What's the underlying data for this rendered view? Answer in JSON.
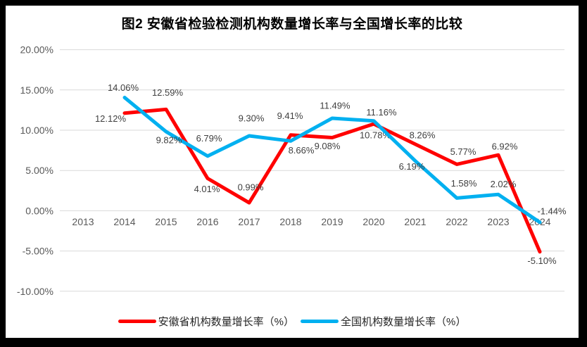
{
  "chart_data": {
    "type": "line",
    "title": "图2 安徽省检验检测机构数量增长率与全国增长率的比较",
    "x_categories": [
      "2013",
      "2014",
      "2015",
      "2016",
      "2017",
      "2018",
      "2019",
      "2020",
      "2021",
      "2022",
      "2023",
      "2024"
    ],
    "y_axis": {
      "min": -10,
      "max": 20,
      "step": 5,
      "ticks": [
        {
          "value": 20,
          "label": "20.00%"
        },
        {
          "value": 15,
          "label": "15.00%"
        },
        {
          "value": 10,
          "label": "10.00%"
        },
        {
          "value": 5,
          "label": "5.00%"
        },
        {
          "value": 0,
          "label": "0.00%"
        },
        {
          "value": -5,
          "label": "-5.00%"
        },
        {
          "value": -10,
          "label": "-10.00%"
        }
      ]
    },
    "grid": true,
    "legend_position": "bottom",
    "colors": {
      "anhui": "#FF0000",
      "national": "#00B0F0",
      "gridline": "#D9D9D9",
      "axis_text": "#595959",
      "data_label_text": "#3F3F3F"
    },
    "series": [
      {
        "id": "anhui",
        "name": "安徽省机构数量增长率（%）",
        "color": "#FF0000",
        "x": [
          "2014",
          "2015",
          "2016",
          "2017",
          "2018",
          "2019",
          "2020",
          "2021",
          "2022",
          "2023",
          "2024"
        ],
        "values": [
          12.12,
          12.59,
          4.01,
          0.99,
          9.41,
          9.08,
          10.78,
          8.26,
          5.77,
          6.92,
          -5.1
        ],
        "point_labels": [
          "12.12%",
          "12.59%",
          "4.01%",
          "0.99%",
          "9.41%",
          "9.08%",
          "10.78%",
          "8.26%",
          "5.77%",
          "6.92%",
          "-5.10%"
        ],
        "label_offsets": [
          [
            -20,
            8
          ],
          [
            2,
            -24
          ],
          [
            -1,
            15
          ],
          [
            2,
            -22
          ],
          [
            -1,
            -27
          ],
          [
            -7,
            12
          ],
          [
            2,
            16
          ],
          [
            10,
            -13
          ],
          [
            9,
            -18
          ],
          [
            9,
            -12
          ],
          [
            3,
            13
          ]
        ]
      },
      {
        "id": "national",
        "name": "全国机构数量增长率（%）",
        "color": "#00B0F0",
        "x": [
          "2014",
          "2015",
          "2016",
          "2017",
          "2018",
          "2019",
          "2020",
          "2021",
          "2022",
          "2023",
          "2024"
        ],
        "values": [
          14.06,
          9.82,
          6.79,
          9.3,
          8.66,
          11.49,
          11.16,
          6.19,
          1.58,
          2.02,
          -1.44
        ],
        "point_labels": [
          "14.06%",
          "9.82%",
          "6.79%",
          "9.30%",
          "8.66%",
          "11.49%",
          "11.16%",
          "6.19%",
          "1.58%",
          "2.02%",
          "-1.44%"
        ],
        "label_offsets": [
          [
            -2,
            -14
          ],
          [
            4,
            12
          ],
          [
            2,
            -25
          ],
          [
            3,
            -25
          ],
          [
            15,
            13
          ],
          [
            4,
            -18
          ],
          [
            11,
            -12
          ],
          [
            -5,
            8
          ],
          [
            10,
            -21
          ],
          [
            7,
            -15
          ],
          [
            17,
            -16
          ]
        ]
      }
    ]
  }
}
